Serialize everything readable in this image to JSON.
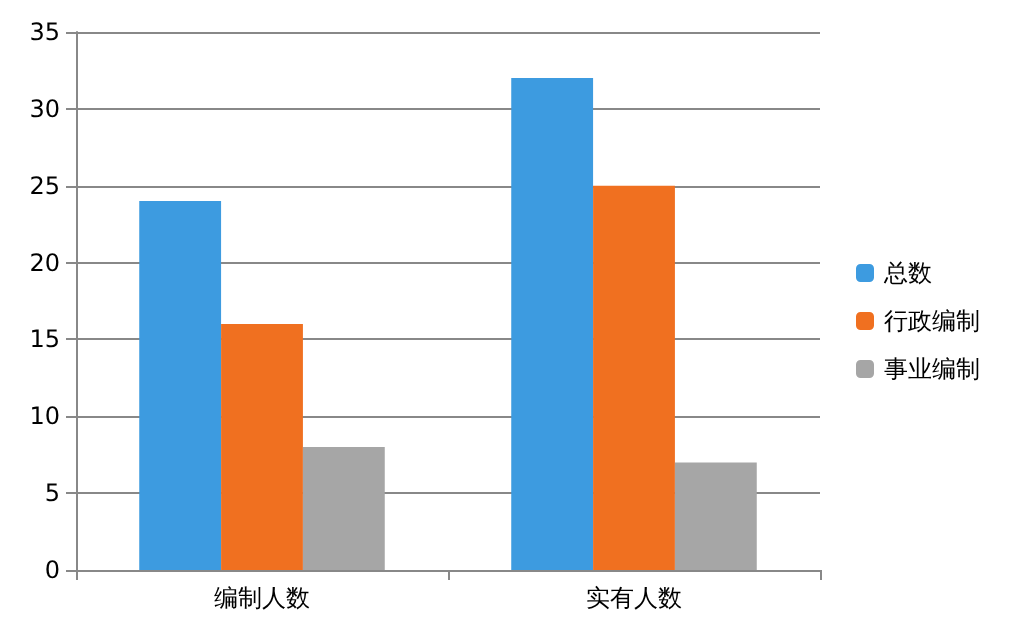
{
  "chart_data": {
    "type": "bar",
    "categories": [
      "编制人数",
      "实有人数"
    ],
    "series": [
      {
        "name": "总数",
        "color": "#3d9be0",
        "values": [
          24,
          32
        ]
      },
      {
        "name": "行政编制",
        "color": "#f07020",
        "values": [
          16,
          25
        ]
      },
      {
        "name": "事业编制",
        "color": "#a6a6a6",
        "values": [
          8,
          7
        ]
      }
    ],
    "ylim": [
      0,
      35
    ],
    "yticks": [
      0,
      5,
      10,
      15,
      20,
      25,
      30,
      35
    ],
    "grid": "y",
    "legend": "right"
  }
}
